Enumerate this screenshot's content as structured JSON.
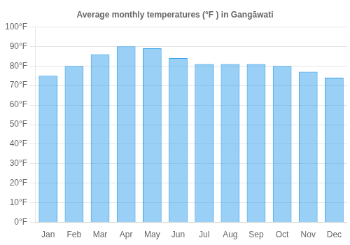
{
  "chart_data": {
    "type": "bar",
    "title": "Average monthly temperatures (°F ) in Gangāwati",
    "categories": [
      "Jan",
      "Feb",
      "Mar",
      "Apr",
      "May",
      "Jun",
      "Jul",
      "Aug",
      "Sep",
      "Oct",
      "Nov",
      "Dec"
    ],
    "values": [
      75,
      80,
      86,
      90,
      89,
      84,
      81,
      81,
      81,
      80,
      77,
      74
    ],
    "ylim": [
      0,
      100
    ],
    "yticks": [
      {
        "value": 0,
        "label": "0°F"
      },
      {
        "value": 10,
        "label": "10°F"
      },
      {
        "value": 20,
        "label": "20°F"
      },
      {
        "value": 30,
        "label": "30°F"
      },
      {
        "value": 40,
        "label": "40°F"
      },
      {
        "value": 50,
        "label": "50°F"
      },
      {
        "value": 60,
        "label": "60°F"
      },
      {
        "value": 70,
        "label": "70°F"
      },
      {
        "value": 80,
        "label": "80°F"
      },
      {
        "value": 90,
        "label": "90°F"
      },
      {
        "value": 100,
        "label": "100°F"
      }
    ],
    "grid": true
  }
}
